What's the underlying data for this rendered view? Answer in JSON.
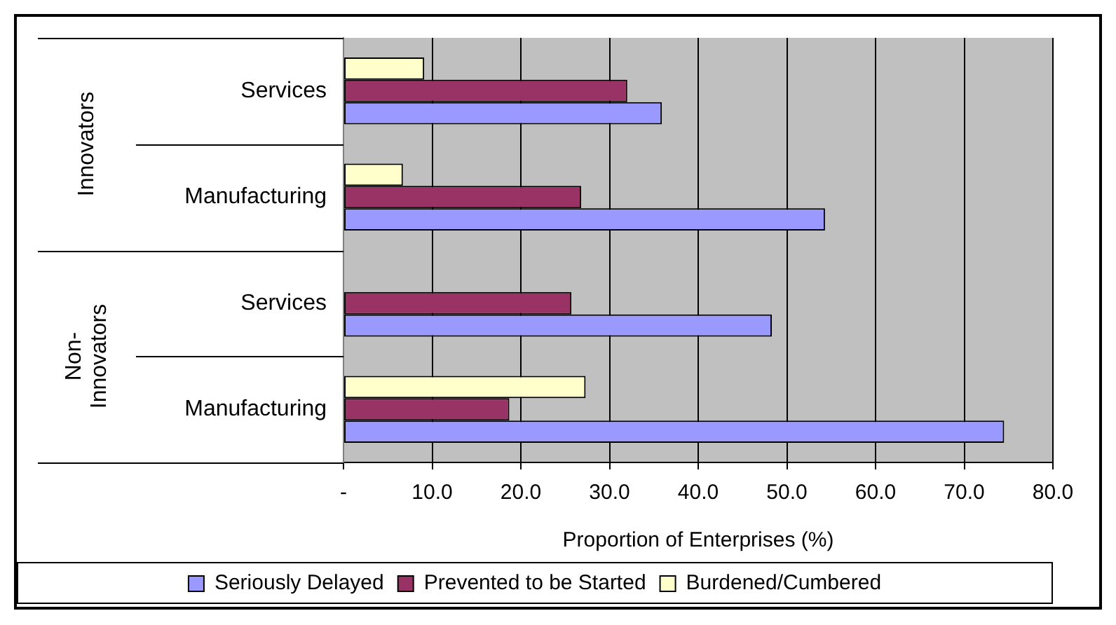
{
  "chart_data": {
    "type": "bar",
    "orientation": "horizontal",
    "xlabel": "Proportion of Enterprises (%)",
    "categories": [
      "Services",
      "Manufacturing",
      "Services",
      "Manufacturing"
    ],
    "annotations": [
      "Innovators",
      "Non-Innovators"
    ],
    "series": [
      {
        "name": "Seriously Delayed",
        "color": "#9999ff",
        "values": [
          35.9,
          54.3,
          48.3,
          74.5
        ]
      },
      {
        "name": "Prevented to be Started",
        "color": "#993366",
        "values": [
          32.0,
          26.8,
          25.7,
          18.7
        ]
      },
      {
        "name": "Burdened/Cumbered",
        "color": "#ffffcc",
        "values": [
          9.1,
          6.7,
          null,
          27.3
        ]
      }
    ],
    "xlim": [
      0,
      80
    ],
    "xticks": [
      {
        "value": 0,
        "label": "-"
      },
      {
        "value": 10,
        "label": "10.0"
      },
      {
        "value": 20,
        "label": "20.0"
      },
      {
        "value": 30,
        "label": "30.0"
      },
      {
        "value": 40,
        "label": "40.0"
      },
      {
        "value": 50,
        "label": "50.0"
      },
      {
        "value": 60,
        "label": "60.0"
      },
      {
        "value": 70,
        "label": "70.0"
      },
      {
        "value": 80,
        "label": "80.0"
      }
    ],
    "grid": "x",
    "legend": "bottom"
  }
}
